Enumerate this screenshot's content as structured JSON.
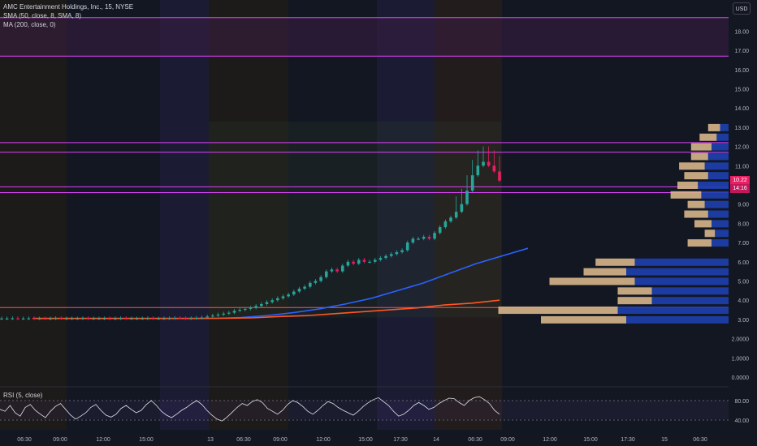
{
  "legend": {
    "title": "AMC Entertainment Holdings, Inc., 15, NYSE",
    "sma": "SMA (50, close, 8, SMA, 8)",
    "ma": "MA (200, close, 0)",
    "rsi": "RSI (5, close)"
  },
  "currency": "USD",
  "last_price": {
    "value": "10.22",
    "countdown": "14:16",
    "color": "#e91e63"
  },
  "chart_data": [
    {
      "type": "candlestick",
      "title": "AMC Entertainment Holdings, Inc., 15, NYSE",
      "y_ticks": [
        "18.00",
        "17.00",
        "16.00",
        "15.00",
        "14.00",
        "13.00",
        "12.00",
        "11.00",
        "10.00",
        "9.00",
        "8.00",
        "7.00",
        "6.00",
        "5.00",
        "4.00",
        "3.00",
        "2.0000",
        "1.0000",
        "0.0000"
      ],
      "x_ticks": [
        "06:30",
        "09:00",
        "12:00",
        "15:00",
        "13",
        "06:30",
        "09:00",
        "12:00",
        "15:00",
        "17:30",
        "14",
        "06:30",
        "09:00",
        "12:00",
        "15:00",
        "17:30",
        "15",
        "06:30"
      ],
      "ylim": [
        0,
        19
      ],
      "horizontal_levels": [
        {
          "value": 18.7,
          "color": "#e040fb"
        },
        {
          "value": 16.7,
          "color": "#e040fb"
        },
        {
          "value": 12.2,
          "color": "#e040fb"
        },
        {
          "value": 11.7,
          "color": "#e040fb"
        },
        {
          "value": 9.9,
          "color": "#e040fb"
        },
        {
          "value": 9.6,
          "color": "#e040fb"
        },
        {
          "value": 3.62,
          "color": "#ff5252"
        }
      ],
      "close": [
        3.05,
        3.05,
        3.06,
        3.05,
        3.05,
        3.06,
        3.05,
        3.05,
        3.04,
        3.05,
        3.06,
        3.05,
        3.05,
        3.05,
        3.05,
        3.06,
        3.05,
        3.05,
        3.05,
        3.05,
        3.04,
        3.05,
        3.06,
        3.05,
        3.05,
        3.05,
        3.05,
        3.06,
        3.05,
        3.05,
        3.05,
        3.06,
        3.07,
        3.06,
        3.05,
        3.06,
        3.08,
        3.1,
        3.15,
        3.2,
        3.25,
        3.3,
        3.35,
        3.45,
        3.5,
        3.55,
        3.6,
        3.7,
        3.8,
        3.9,
        4.0,
        4.1,
        4.2,
        4.3,
        4.45,
        4.6,
        4.7,
        4.9,
        5.0,
        5.2,
        5.5,
        5.6,
        5.5,
        5.8,
        6.0,
        5.9,
        6.1,
        6.0,
        6.0,
        6.1,
        6.2,
        6.3,
        6.4,
        6.5,
        6.6,
        7.0,
        7.2,
        7.2,
        7.3,
        7.2,
        7.5,
        7.8,
        8.1,
        8.3,
        8.6,
        9.0,
        9.7,
        10.5,
        11.0,
        11.2,
        11.0,
        10.7,
        10.22
      ],
      "series": [
        {
          "name": "SMA (50, close, 8, SMA, 8)",
          "color": "#2962ff",
          "values": [
            3.05,
            3.05,
            3.05,
            3.05,
            3.05,
            3.05,
            3.05,
            3.06,
            3.1,
            3.2,
            3.35,
            3.55,
            3.8,
            4.1,
            4.5,
            4.9,
            5.4,
            5.9,
            6.3,
            6.7
          ]
        },
        {
          "name": "MA (200, close, 0)",
          "color": "#ff5722",
          "values": [
            3.05,
            3.05,
            3.05,
            3.05,
            3.05,
            3.05,
            3.05,
            3.06,
            3.08,
            3.15,
            3.2,
            3.3,
            3.4,
            3.5,
            3.6,
            3.75,
            3.85,
            4.0
          ]
        }
      ],
      "volume_profile": [
        {
          "price": 13.0,
          "up": 0.05,
          "down": 0.07
        },
        {
          "price": 12.5,
          "up": 0.07,
          "down": 0.1
        },
        {
          "price": 12.0,
          "up": 0.1,
          "down": 0.12
        },
        {
          "price": 11.5,
          "up": 0.12,
          "down": 0.1
        },
        {
          "price": 11.0,
          "up": 0.14,
          "down": 0.15
        },
        {
          "price": 10.5,
          "up": 0.12,
          "down": 0.14
        },
        {
          "price": 10.0,
          "up": 0.18,
          "down": 0.12
        },
        {
          "price": 9.5,
          "up": 0.16,
          "down": 0.18
        },
        {
          "price": 9.0,
          "up": 0.14,
          "down": 0.1
        },
        {
          "price": 8.5,
          "up": 0.12,
          "down": 0.14
        },
        {
          "price": 8.0,
          "up": 0.1,
          "down": 0.1
        },
        {
          "price": 7.5,
          "up": 0.08,
          "down": 0.06
        },
        {
          "price": 7.0,
          "up": 0.1,
          "down": 0.14
        },
        {
          "price": 6.0,
          "up": 0.55,
          "down": 0.23
        },
        {
          "price": 5.5,
          "up": 0.6,
          "down": 0.25
        },
        {
          "price": 5.0,
          "up": 0.55,
          "down": 0.5
        },
        {
          "price": 4.5,
          "up": 0.45,
          "down": 0.2
        },
        {
          "price": 4.0,
          "up": 0.45,
          "down": 0.2
        },
        {
          "price": 3.5,
          "up": 0.65,
          "down": 0.7
        },
        {
          "price": 3.0,
          "up": 0.6,
          "down": 0.5
        }
      ]
    },
    {
      "type": "line",
      "title": "RSI (5, close)",
      "y_ticks": [
        "80.00",
        "40.00"
      ],
      "levels": [
        80,
        40
      ],
      "ylim": [
        25,
        95
      ],
      "values": [
        62,
        58,
        70,
        55,
        48,
        66,
        72,
        60,
        52,
        45,
        58,
        68,
        74,
        62,
        50,
        42,
        48,
        55,
        66,
        72,
        60,
        50,
        46,
        52,
        64,
        70,
        62,
        55,
        60,
        72,
        80,
        70,
        58,
        50,
        45,
        52,
        60,
        66,
        74,
        80,
        72,
        60,
        50,
        42,
        38,
        46,
        56,
        66,
        74,
        70,
        78,
        82,
        76,
        64,
        58,
        52,
        60,
        72,
        80,
        76,
        68,
        58,
        52,
        60,
        70,
        78,
        74,
        66,
        60,
        55,
        50,
        58,
        68,
        76,
        82,
        86,
        78,
        70,
        58,
        48,
        52,
        60,
        70,
        76,
        70,
        62,
        66,
        74,
        80,
        85,
        84,
        76,
        70,
        80,
        86,
        88,
        82,
        74,
        60,
        52
      ]
    }
  ]
}
